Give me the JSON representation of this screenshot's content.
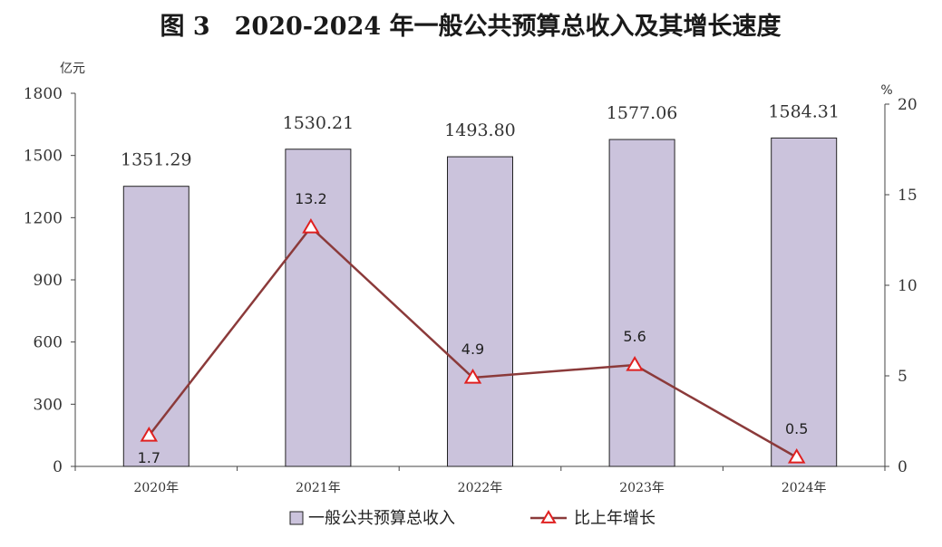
{
  "chart_data": {
    "type": "bar",
    "title": "图 3　2020-2024 年一般公共预算总收入及其增长速度",
    "categories": [
      "2020年",
      "2021年",
      "2022年",
      "2023年",
      "2024年"
    ],
    "y_left": {
      "unit": "亿元",
      "ylim": [
        0,
        1800
      ],
      "ticks": [
        "0",
        "300",
        "600",
        "900",
        "1200",
        "1500",
        "1800"
      ]
    },
    "y_right": {
      "unit": "%",
      "ylim": [
        0,
        20
      ],
      "ticks": [
        "0",
        "5",
        "10",
        "15",
        "20"
      ]
    },
    "series": [
      {
        "name": "一般公共预算总收入",
        "type": "bar",
        "axis": "left",
        "values": [
          1351.29,
          1530.21,
          1493.8,
          1577.06,
          1584.31
        ],
        "labels": [
          "1351.29",
          "1530.21",
          "1493.80",
          "1577.06",
          "1584.31"
        ]
      },
      {
        "name": "比上年增长",
        "type": "line",
        "axis": "right",
        "values": [
          1.7,
          13.2,
          4.9,
          5.6,
          0.5
        ],
        "labels": [
          "1.7",
          "13.2",
          "4.9",
          "5.6",
          "0.5"
        ]
      }
    ],
    "legend_position": "bottom",
    "grid": false
  },
  "colors": {
    "bar_fill": "#cbc3dc",
    "bar_stroke": "#222222",
    "line": "#8b3a3a",
    "marker": "#e02020",
    "axis": "#444444"
  }
}
